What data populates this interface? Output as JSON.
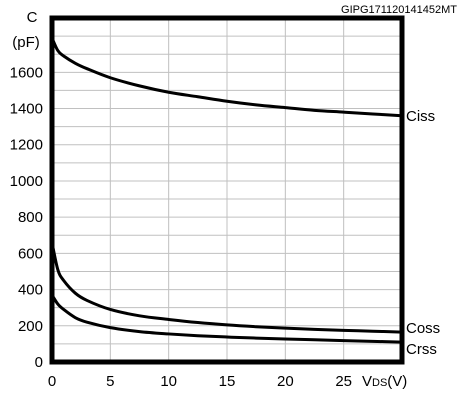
{
  "chart_data": {
    "type": "line",
    "figure_code": "GIPG171120141452MT",
    "ylabel_line1": "C",
    "ylabel_line2": "(pF)",
    "xlabel_main": "V",
    "xlabel_sub": "DS",
    "xlabel_unit": "(V)",
    "xlim": [
      0,
      30
    ],
    "ylim": [
      0,
      1900
    ],
    "grid": true,
    "x_ticks": [
      0,
      5,
      10,
      15,
      20,
      25
    ],
    "y_ticks": [
      0,
      200,
      400,
      600,
      800,
      1000,
      1200,
      1400,
      1600
    ],
    "x_tick_labels": [
      "0",
      "5",
      "10",
      "15",
      "20",
      "25"
    ],
    "y_tick_labels": [
      "0",
      "200",
      "400",
      "600",
      "800",
      "1000",
      "1200",
      "1400",
      "1600"
    ],
    "series": [
      {
        "name": "Ciss",
        "x": [
          0,
          0.5,
          1,
          2,
          3,
          5,
          7.5,
          10,
          12.5,
          15,
          17.5,
          20,
          22.5,
          25,
          27.5,
          30
        ],
        "y": [
          1790,
          1720,
          1690,
          1650,
          1620,
          1570,
          1525,
          1490,
          1465,
          1440,
          1420,
          1405,
          1390,
          1380,
          1370,
          1360
        ]
      },
      {
        "name": "Coss",
        "x": [
          0,
          0.5,
          1,
          2,
          3,
          5,
          7.5,
          10,
          12.5,
          15,
          17.5,
          20,
          22.5,
          25,
          27.5,
          30
        ],
        "y": [
          660,
          510,
          450,
          380,
          340,
          290,
          255,
          235,
          218,
          205,
          195,
          187,
          180,
          175,
          170,
          165
        ]
      },
      {
        "name": "Crss",
        "x": [
          0,
          0.5,
          1,
          2,
          3,
          5,
          7.5,
          10,
          12.5,
          15,
          17.5,
          20,
          22.5,
          25,
          27.5,
          30
        ],
        "y": [
          370,
          320,
          290,
          245,
          220,
          190,
          168,
          155,
          145,
          138,
          132,
          127,
          123,
          118,
          114,
          110
        ]
      }
    ]
  }
}
